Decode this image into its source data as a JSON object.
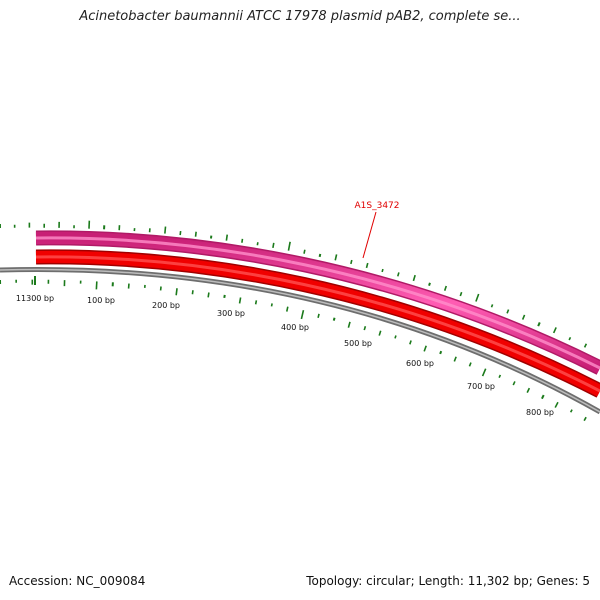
{
  "title": "Acinetobacter baumannii ATCC 17978 plasmid pAB2, complete se...",
  "footer": {
    "accession": "Accession: NC_009084",
    "summary": "Topology: circular; Length: 11,302 bp; Genes: 5"
  },
  "gene_label": "A1S_3472",
  "scale_labels": [
    "11300 bp",
    "100 bp",
    "200 bp",
    "300 bp",
    "400 bp",
    "500 bp",
    "600 bp",
    "700 bp",
    "800 bp"
  ],
  "colors": {
    "outer_track": "#e8318f",
    "inner_track": "#e50000",
    "backbone": "#8a8a8a",
    "gc_ticks": "#1b7a1b",
    "gene_label": "#e00000"
  }
}
